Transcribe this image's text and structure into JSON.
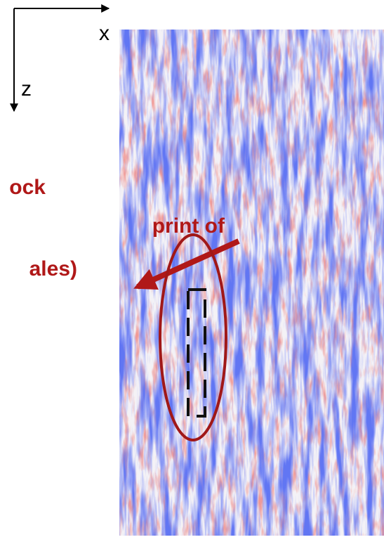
{
  "axes": {
    "x_label": "x",
    "z_label": "z"
  },
  "annotation": {
    "lines": [
      "ock",
      "print of",
      "ales)"
    ]
  }
}
